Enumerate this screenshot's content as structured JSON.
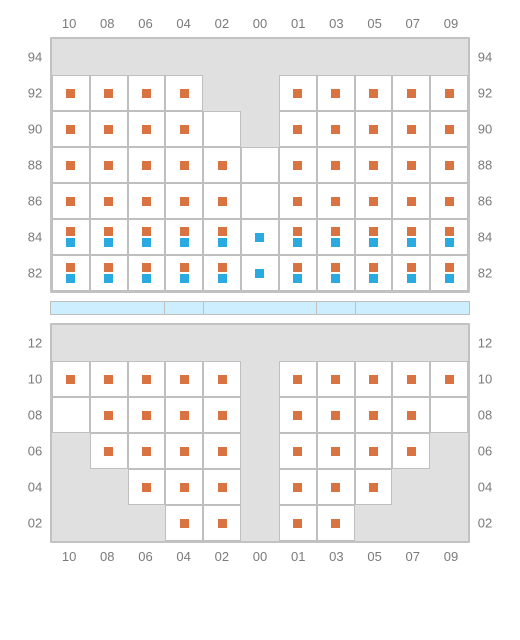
{
  "colors": {
    "orange": "#d97442",
    "blue": "#29abe2",
    "seat_bg": "#ffffff",
    "empty_bg": "#e0e0e0",
    "grid_border": "#bfbfbf",
    "label_text": "#7a7a7a",
    "section_border": "#c2c2c2",
    "divider_fill": "#cceeff"
  },
  "column_labels": [
    "10",
    "08",
    "06",
    "04",
    "02",
    "00",
    "01",
    "03",
    "05",
    "07",
    "09"
  ],
  "divider_segments": [
    3,
    1,
    3,
    1,
    3
  ],
  "upper": {
    "row_labels": [
      "94",
      "92",
      "90",
      "88",
      "86",
      "84",
      "82"
    ],
    "cells": [
      [
        {
          "t": "e"
        },
        {
          "t": "e"
        },
        {
          "t": "e"
        },
        {
          "t": "e"
        },
        {
          "t": "e"
        },
        {
          "t": "e"
        },
        {
          "t": "e"
        },
        {
          "t": "e"
        },
        {
          "t": "e"
        },
        {
          "t": "e"
        },
        {
          "t": "e"
        }
      ],
      [
        {
          "t": "s",
          "m": [
            "o"
          ]
        },
        {
          "t": "s",
          "m": [
            "o"
          ]
        },
        {
          "t": "s",
          "m": [
            "o"
          ]
        },
        {
          "t": "s",
          "m": [
            "o"
          ]
        },
        {
          "t": "e"
        },
        {
          "t": "e"
        },
        {
          "t": "s",
          "m": [
            "o"
          ]
        },
        {
          "t": "s",
          "m": [
            "o"
          ]
        },
        {
          "t": "s",
          "m": [
            "o"
          ]
        },
        {
          "t": "s",
          "m": [
            "o"
          ]
        },
        {
          "t": "s",
          "m": [
            "o"
          ]
        }
      ],
      [
        {
          "t": "s",
          "m": [
            "o"
          ]
        },
        {
          "t": "s",
          "m": [
            "o"
          ]
        },
        {
          "t": "s",
          "m": [
            "o"
          ]
        },
        {
          "t": "s",
          "m": [
            "o"
          ]
        },
        {
          "t": "s",
          "m": []
        },
        {
          "t": "e"
        },
        {
          "t": "s",
          "m": [
            "o"
          ]
        },
        {
          "t": "s",
          "m": [
            "o"
          ]
        },
        {
          "t": "s",
          "m": [
            "o"
          ]
        },
        {
          "t": "s",
          "m": [
            "o"
          ]
        },
        {
          "t": "s",
          "m": [
            "o"
          ]
        }
      ],
      [
        {
          "t": "s",
          "m": [
            "o"
          ]
        },
        {
          "t": "s",
          "m": [
            "o"
          ]
        },
        {
          "t": "s",
          "m": [
            "o"
          ]
        },
        {
          "t": "s",
          "m": [
            "o"
          ]
        },
        {
          "t": "s",
          "m": [
            "o"
          ]
        },
        {
          "t": "s",
          "m": []
        },
        {
          "t": "s",
          "m": [
            "o"
          ]
        },
        {
          "t": "s",
          "m": [
            "o"
          ]
        },
        {
          "t": "s",
          "m": [
            "o"
          ]
        },
        {
          "t": "s",
          "m": [
            "o"
          ]
        },
        {
          "t": "s",
          "m": [
            "o"
          ]
        }
      ],
      [
        {
          "t": "s",
          "m": [
            "o"
          ]
        },
        {
          "t": "s",
          "m": [
            "o"
          ]
        },
        {
          "t": "s",
          "m": [
            "o"
          ]
        },
        {
          "t": "s",
          "m": [
            "o"
          ]
        },
        {
          "t": "s",
          "m": [
            "o"
          ]
        },
        {
          "t": "s",
          "m": []
        },
        {
          "t": "s",
          "m": [
            "o"
          ]
        },
        {
          "t": "s",
          "m": [
            "o"
          ]
        },
        {
          "t": "s",
          "m": [
            "o"
          ]
        },
        {
          "t": "s",
          "m": [
            "o"
          ]
        },
        {
          "t": "s",
          "m": [
            "o"
          ]
        }
      ],
      [
        {
          "t": "s",
          "m": [
            "o",
            "b"
          ]
        },
        {
          "t": "s",
          "m": [
            "o",
            "b"
          ]
        },
        {
          "t": "s",
          "m": [
            "o",
            "b"
          ]
        },
        {
          "t": "s",
          "m": [
            "o",
            "b"
          ]
        },
        {
          "t": "s",
          "m": [
            "o",
            "b"
          ]
        },
        {
          "t": "s",
          "m": [
            "b"
          ]
        },
        {
          "t": "s",
          "m": [
            "o",
            "b"
          ]
        },
        {
          "t": "s",
          "m": [
            "o",
            "b"
          ]
        },
        {
          "t": "s",
          "m": [
            "o",
            "b"
          ]
        },
        {
          "t": "s",
          "m": [
            "o",
            "b"
          ]
        },
        {
          "t": "s",
          "m": [
            "o",
            "b"
          ]
        }
      ],
      [
        {
          "t": "s",
          "m": [
            "o",
            "b"
          ]
        },
        {
          "t": "s",
          "m": [
            "o",
            "b"
          ]
        },
        {
          "t": "s",
          "m": [
            "o",
            "b"
          ]
        },
        {
          "t": "s",
          "m": [
            "o",
            "b"
          ]
        },
        {
          "t": "s",
          "m": [
            "o",
            "b"
          ]
        },
        {
          "t": "s",
          "m": [
            "b"
          ]
        },
        {
          "t": "s",
          "m": [
            "o",
            "b"
          ]
        },
        {
          "t": "s",
          "m": [
            "o",
            "b"
          ]
        },
        {
          "t": "s",
          "m": [
            "o",
            "b"
          ]
        },
        {
          "t": "s",
          "m": [
            "o",
            "b"
          ]
        },
        {
          "t": "s",
          "m": [
            "o",
            "b"
          ]
        }
      ]
    ]
  },
  "lower": {
    "row_labels": [
      "12",
      "10",
      "08",
      "06",
      "04",
      "02"
    ],
    "cells": [
      [
        {
          "t": "e"
        },
        {
          "t": "e"
        },
        {
          "t": "e"
        },
        {
          "t": "e"
        },
        {
          "t": "e"
        },
        {
          "t": "e"
        },
        {
          "t": "e"
        },
        {
          "t": "e"
        },
        {
          "t": "e"
        },
        {
          "t": "e"
        },
        {
          "t": "e"
        }
      ],
      [
        {
          "t": "s",
          "m": [
            "o"
          ]
        },
        {
          "t": "s",
          "m": [
            "o"
          ]
        },
        {
          "t": "s",
          "m": [
            "o"
          ]
        },
        {
          "t": "s",
          "m": [
            "o"
          ]
        },
        {
          "t": "s",
          "m": [
            "o"
          ]
        },
        {
          "t": "e"
        },
        {
          "t": "s",
          "m": [
            "o"
          ]
        },
        {
          "t": "s",
          "m": [
            "o"
          ]
        },
        {
          "t": "s",
          "m": [
            "o"
          ]
        },
        {
          "t": "s",
          "m": [
            "o"
          ]
        },
        {
          "t": "s",
          "m": [
            "o"
          ]
        }
      ],
      [
        {
          "t": "s",
          "m": []
        },
        {
          "t": "s",
          "m": [
            "o"
          ]
        },
        {
          "t": "s",
          "m": [
            "o"
          ]
        },
        {
          "t": "s",
          "m": [
            "o"
          ]
        },
        {
          "t": "s",
          "m": [
            "o"
          ]
        },
        {
          "t": "e"
        },
        {
          "t": "s",
          "m": [
            "o"
          ]
        },
        {
          "t": "s",
          "m": [
            "o"
          ]
        },
        {
          "t": "s",
          "m": [
            "o"
          ]
        },
        {
          "t": "s",
          "m": [
            "o"
          ]
        },
        {
          "t": "s",
          "m": []
        }
      ],
      [
        {
          "t": "e"
        },
        {
          "t": "s",
          "m": [
            "o"
          ]
        },
        {
          "t": "s",
          "m": [
            "o"
          ]
        },
        {
          "t": "s",
          "m": [
            "o"
          ]
        },
        {
          "t": "s",
          "m": [
            "o"
          ]
        },
        {
          "t": "e"
        },
        {
          "t": "s",
          "m": [
            "o"
          ]
        },
        {
          "t": "s",
          "m": [
            "o"
          ]
        },
        {
          "t": "s",
          "m": [
            "o"
          ]
        },
        {
          "t": "s",
          "m": [
            "o"
          ]
        },
        {
          "t": "e"
        }
      ],
      [
        {
          "t": "e"
        },
        {
          "t": "e"
        },
        {
          "t": "s",
          "m": [
            "o"
          ]
        },
        {
          "t": "s",
          "m": [
            "o"
          ]
        },
        {
          "t": "s",
          "m": [
            "o"
          ]
        },
        {
          "t": "e"
        },
        {
          "t": "s",
          "m": [
            "o"
          ]
        },
        {
          "t": "s",
          "m": [
            "o"
          ]
        },
        {
          "t": "s",
          "m": [
            "o"
          ]
        },
        {
          "t": "e"
        },
        {
          "t": "e"
        }
      ],
      [
        {
          "t": "e"
        },
        {
          "t": "e"
        },
        {
          "t": "e"
        },
        {
          "t": "s",
          "m": [
            "o"
          ]
        },
        {
          "t": "s",
          "m": [
            "o"
          ]
        },
        {
          "t": "e"
        },
        {
          "t": "s",
          "m": [
            "o"
          ]
        },
        {
          "t": "s",
          "m": [
            "o"
          ]
        },
        {
          "t": "e"
        },
        {
          "t": "e"
        },
        {
          "t": "e"
        }
      ]
    ]
  }
}
